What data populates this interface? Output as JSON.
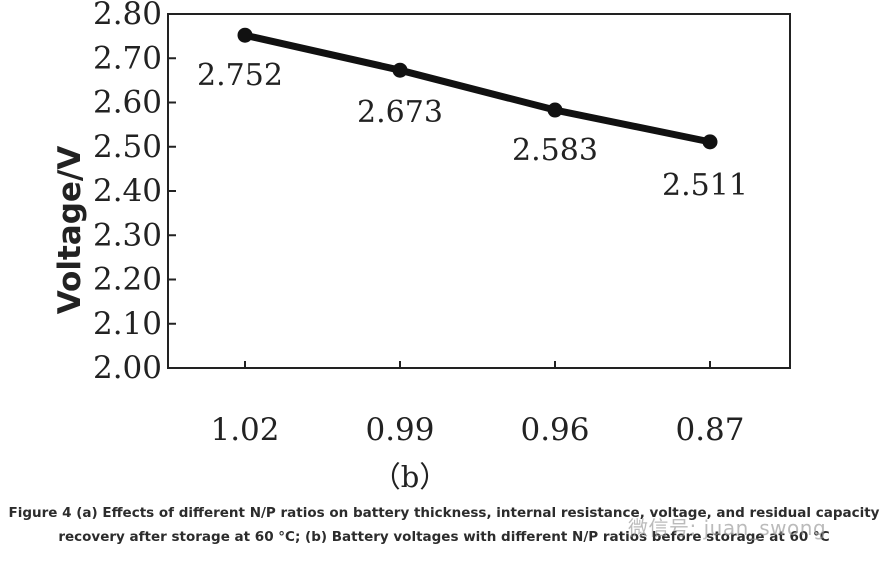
{
  "chart_data": {
    "type": "line",
    "categories": [
      "1.02",
      "0.99",
      "0.96",
      "0.87"
    ],
    "series": [
      {
        "values": [
          2.752,
          2.673,
          2.583,
          2.511
        ]
      }
    ],
    "data_labels": [
      "2.752",
      "2.673",
      "2.583",
      "2.511"
    ],
    "ylabel": "Voltage/V",
    "xlabel": "",
    "ylim": [
      2.0,
      2.8
    ],
    "y_ticks": [
      "2.00",
      "2.10",
      "2.20",
      "2.30",
      "2.40",
      "2.50",
      "2.60",
      "2.70",
      "2.80"
    ],
    "panel_label": "（b）",
    "grid": false,
    "line_color": "#111111"
  },
  "caption": {
    "line1": "Figure 4 (a) Effects of different N/P ratios on battery thickness, internal resistance, voltage, and residual capacity",
    "line2": "recovery after storage at 60 °C; (b) Battery voltages with different N/P ratios before storage at 60 °C"
  },
  "watermark": "微信号: juan_swong"
}
